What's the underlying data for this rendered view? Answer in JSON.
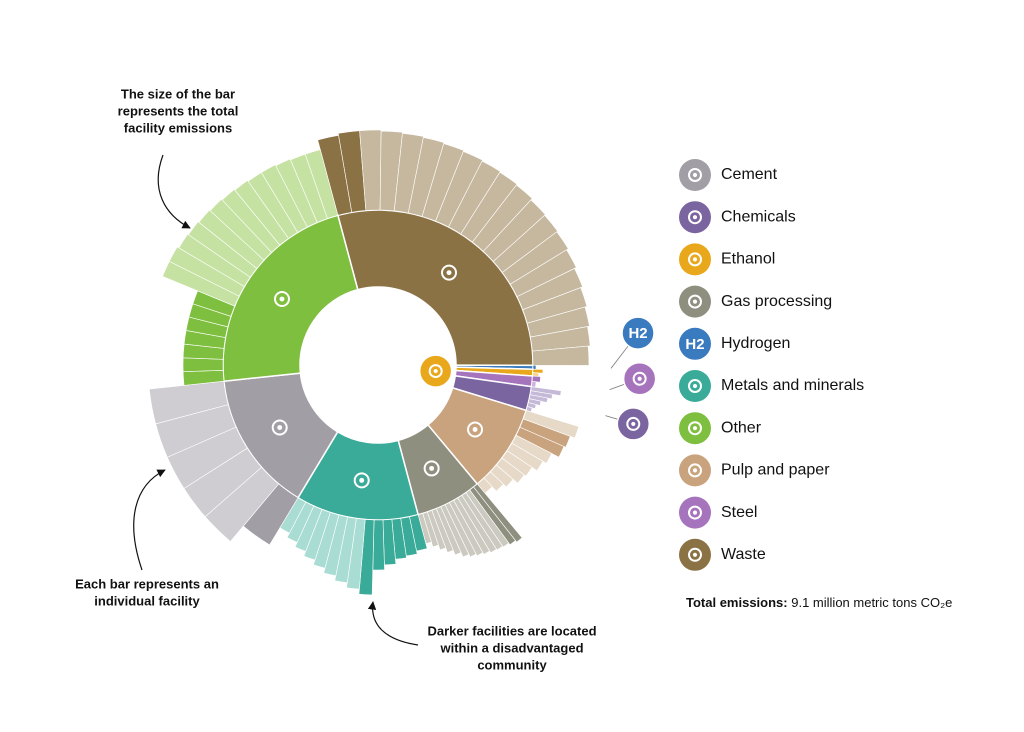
{
  "chart_data": {
    "type": "sunburst",
    "annotations": [
      [
        "The size of the bar",
        "represents the total",
        "facility emissions"
      ],
      [
        "Each bar represents an",
        "individual facility"
      ],
      [
        "Darker facilities are located",
        "within a disadvantaged",
        "community"
      ]
    ],
    "total": {
      "label": "Total emissions:",
      "text": "9.1 million metric tons CO₂e"
    },
    "series": [
      {
        "name": "Waste",
        "color": "#8b7244",
        "light_color": "#c6b89f",
        "value": 29.2,
        "facilities": [
          78,
          80,
          80,
          79,
          78,
          77,
          76,
          75,
          74,
          73,
          72,
          70,
          69,
          68,
          66,
          64,
          62,
          60,
          58,
          56
        ],
        "disadvantaged": [
          true,
          true,
          false,
          false,
          false,
          false,
          false,
          false,
          false,
          false,
          false,
          false,
          false,
          false,
          false,
          false,
          false,
          false,
          false,
          false
        ]
      },
      {
        "name": "Hydrogen",
        "color": "#3a7bbf",
        "light_color": "#8fb6de",
        "value": 0.4,
        "label": "H2",
        "facilities": [
          3
        ],
        "disadvantaged": [
          true
        ]
      },
      {
        "name": "Ethanol",
        "color": "#e9a81c",
        "light_color": "#f5d88a",
        "value": 0.7,
        "facilities": [
          10,
          6
        ],
        "disadvantaged": [
          true,
          false
        ]
      },
      {
        "name": "Steel",
        "color": "#a673bd",
        "light_color": "#cfb0dd",
        "value": 1.1,
        "facilities": [
          8,
          4
        ],
        "disadvantaged": [
          true,
          false
        ]
      },
      {
        "name": "Chemicals",
        "color": "#7b65a0",
        "light_color": "#c4b9d7",
        "value": 2.5,
        "facilities": [
          30,
          22,
          18,
          12,
          8,
          5
        ],
        "disadvantaged": [
          false,
          false,
          false,
          false,
          false,
          false
        ]
      },
      {
        "name": "Pulp and paper",
        "color": "#c9a27e",
        "light_color": "#e6d9c8",
        "value": 9.2,
        "facilities": [
          55,
          50,
          48,
          40,
          36,
          30,
          28,
          22,
          18,
          12
        ],
        "disadvantaged": [
          false,
          true,
          true,
          false,
          false,
          false,
          false,
          false,
          false,
          false
        ]
      },
      {
        "name": "Gas processing",
        "color": "#8f8f80",
        "light_color": "#cccac0",
        "value": 6.9,
        "facilities": [
          70,
          68,
          66,
          65,
          64,
          62,
          60,
          58,
          55,
          50,
          45,
          40,
          35,
          30
        ],
        "disadvantaged": [
          true,
          true,
          false,
          false,
          false,
          false,
          false,
          false,
          false,
          false,
          false,
          false,
          false,
          false
        ]
      },
      {
        "name": "Metals and minerals",
        "color": "#3aab98",
        "light_color": "#a9dcd3",
        "value": 12.8,
        "facilities": [
          35,
          38,
          40,
          45,
          50,
          75,
          70,
          65,
          60,
          55,
          50,
          45,
          40,
          35
        ],
        "disadvantaged": [
          true,
          true,
          true,
          true,
          true,
          true,
          false,
          false,
          false,
          false,
          false,
          false,
          false,
          false
        ]
      },
      {
        "name": "Cement",
        "color": "#a29ea6",
        "light_color": "#cfccd2",
        "value": 14.7,
        "facilities": [
          55,
          75,
          75,
          75,
          75,
          75
        ],
        "disadvantaged": [
          true,
          false,
          false,
          false,
          false,
          false
        ]
      },
      {
        "name": "Other",
        "color": "#7fbf3f",
        "light_color": "#c5e2a2",
        "value": 22.5,
        "facilities": [
          40,
          40,
          40,
          40,
          40,
          40,
          40,
          78,
          78,
          76,
          75,
          74,
          73,
          72,
          71,
          70,
          70,
          69,
          68,
          68
        ],
        "disadvantaged": [
          true,
          true,
          true,
          true,
          true,
          true,
          true,
          false,
          false,
          false,
          false,
          false,
          false,
          false,
          false,
          false,
          false,
          false,
          false,
          false
        ]
      }
    ]
  }
}
